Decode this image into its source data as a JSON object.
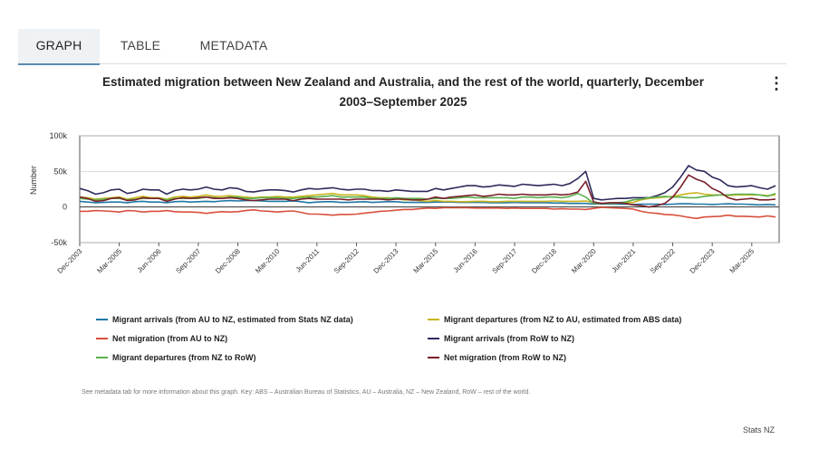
{
  "tabs": [
    {
      "label": "GRAPH",
      "active": true
    },
    {
      "label": "TABLE",
      "active": false
    },
    {
      "label": "METADATA",
      "active": false
    }
  ],
  "menu_icon": "more-vertical-icon",
  "footnote": "See metadata tab for more information about this graph. Key: ABS – Australian Bureau of Statistics, AU – Australia, NZ – New Zealand, RoW – rest of the world.",
  "source": "Stats NZ",
  "chart_data": {
    "type": "line",
    "title": "Estimated migration between New Zealand and Australia, and the rest of the world, quarterly, December 2003–September 2025",
    "title_lines": [
      "Estimated migration between New Zealand and Australia, and the rest of the world, quarterly, December",
      "2003–September 2025"
    ],
    "ylabel": "Number",
    "xlabel": "",
    "ylim": [
      -50000,
      100000
    ],
    "yticks": [
      {
        "value": 100000,
        "label": "100k"
      },
      {
        "value": 50000,
        "label": "50k"
      },
      {
        "value": 0,
        "label": "0"
      },
      {
        "value": -50000,
        "label": "-50k"
      }
    ],
    "xticks": [
      {
        "index": 0,
        "label": "Dec-2003"
      },
      {
        "index": 5,
        "label": "Mar-2005"
      },
      {
        "index": 10,
        "label": "Jun-2006"
      },
      {
        "index": 15,
        "label": "Sep-2007"
      },
      {
        "index": 20,
        "label": "Dec-2008"
      },
      {
        "index": 25,
        "label": "Mar-2010"
      },
      {
        "index": 30,
        "label": "Jun-2011"
      },
      {
        "index": 35,
        "label": "Sep-2012"
      },
      {
        "index": 40,
        "label": "Dec-2013"
      },
      {
        "index": 45,
        "label": "Mar-2015"
      },
      {
        "index": 50,
        "label": "Jun-2016"
      },
      {
        "index": 55,
        "label": "Sep-2017"
      },
      {
        "index": 60,
        "label": "Dec-2018"
      },
      {
        "index": 65,
        "label": "Mar-2020"
      },
      {
        "index": 70,
        "label": "Jun-2021"
      },
      {
        "index": 75,
        "label": "Sep-2022"
      },
      {
        "index": 80,
        "label": "Dec-2023"
      },
      {
        "index": 85,
        "label": "Mar-2025"
      }
    ],
    "grid": true,
    "legend_position": "bottom",
    "series": [
      {
        "name": "Migrant arrivals (from AU to NZ, estimated from Stats NZ data)",
        "color": "#1f77a4",
        "values": [
          8000,
          7000,
          6000,
          6500,
          7000,
          7000,
          6000,
          7500,
          8000,
          7000,
          7000,
          6000,
          7500,
          8000,
          7000,
          7500,
          8000,
          7500,
          8500,
          9000,
          8500,
          9000,
          9000,
          8500,
          8000,
          8000,
          8000,
          8500,
          7500,
          6000,
          7000,
          7500,
          7500,
          6500,
          6500,
          7000,
          7500,
          6500,
          7000,
          7500,
          7500,
          6500,
          6500,
          6500,
          6500,
          7000,
          7000,
          7000,
          6500,
          6500,
          6500,
          6500,
          6000,
          6000,
          6000,
          6500,
          6000,
          6000,
          6000,
          6000,
          5500,
          5500,
          5000,
          5000,
          5000,
          4000,
          4500,
          4000,
          4000,
          4000,
          3500,
          4000,
          4000,
          4000,
          3500,
          4000,
          4500,
          4500,
          4000,
          4000,
          3500,
          4000,
          4500,
          4000,
          4000,
          3500,
          3000,
          3500,
          3000
        ]
      },
      {
        "name": "Migrant departures (from NZ to AU, estimated from ABS data)",
        "color": "#c9b41e",
        "values": [
          14000,
          13000,
          11000,
          12000,
          13000,
          14000,
          11000,
          13000,
          15000,
          13000,
          13000,
          11000,
          14000,
          15000,
          14000,
          15000,
          17000,
          15000,
          15000,
          16000,
          15000,
          14000,
          13000,
          14000,
          14000,
          15000,
          14000,
          14000,
          15000,
          16000,
          17000,
          18000,
          19000,
          17000,
          17000,
          17000,
          16000,
          14000,
          13000,
          13000,
          12000,
          10000,
          10000,
          9000,
          8000,
          9000,
          8000,
          8000,
          7500,
          7500,
          8000,
          8000,
          7500,
          7500,
          8000,
          8000,
          8000,
          8000,
          8000,
          8000,
          8500,
          8000,
          8000,
          8000,
          8500,
          6000,
          5000,
          5000,
          5500,
          6000,
          6500,
          10000,
          12000,
          13000,
          14000,
          15000,
          17000,
          19000,
          20000,
          18000,
          17000,
          17000,
          16000,
          17000,
          17000,
          17000,
          17000,
          16000,
          17000
        ]
      },
      {
        "name": "Net migration (from AU to NZ)",
        "color": "#d94f3d",
        "values": [
          -6000,
          -6000,
          -5000,
          -5500,
          -6000,
          -7000,
          -5000,
          -5500,
          -7000,
          -6000,
          -6000,
          -5000,
          -6500,
          -7000,
          -7000,
          -7500,
          -9000,
          -7500,
          -6500,
          -7000,
          -6500,
          -5000,
          -4000,
          -5500,
          -6000,
          -7000,
          -6000,
          -5500,
          -7500,
          -10000,
          -10000,
          -10500,
          -11500,
          -10500,
          -10500,
          -10000,
          -8500,
          -7500,
          -6000,
          -5500,
          -4500,
          -3500,
          -3500,
          -2500,
          -1500,
          -2000,
          -1000,
          -1000,
          -1000,
          -1000,
          -1500,
          -1500,
          -1500,
          -1500,
          -2000,
          -1500,
          -2000,
          -2000,
          -2000,
          -2000,
          -3000,
          -2500,
          -3000,
          -3000,
          -3500,
          -2000,
          -500,
          -1000,
          -1500,
          -2000,
          -3000,
          -6000,
          -8000,
          -9000,
          -10500,
          -11000,
          -12500,
          -14500,
          -16000,
          -14000,
          -13500,
          -13000,
          -11500,
          -13000,
          -13000,
          -13500,
          -14000,
          -12500,
          -14000
        ]
      },
      {
        "name": "Migrant arrivals (from RoW to NZ)",
        "color": "#2e2a5c",
        "values": [
          26000,
          23000,
          18000,
          20000,
          24000,
          25000,
          19000,
          21000,
          25000,
          24000,
          24000,
          18000,
          23000,
          25000,
          24000,
          25000,
          28000,
          25000,
          24000,
          27000,
          26000,
          22000,
          21000,
          23000,
          24000,
          24000,
          23000,
          21000,
          24000,
          26000,
          25000,
          26000,
          27000,
          25000,
          24000,
          25000,
          25000,
          23000,
          23000,
          22000,
          24000,
          23000,
          22000,
          22000,
          22000,
          26000,
          24000,
          26000,
          28000,
          30000,
          30000,
          28000,
          29000,
          31000,
          30000,
          29000,
          32000,
          31000,
          30000,
          31000,
          32000,
          30000,
          33000,
          40000,
          50000,
          12000,
          10000,
          11000,
          12000,
          12000,
          13000,
          13000,
          13000,
          16000,
          20000,
          28000,
          42000,
          58000,
          52000,
          50000,
          42000,
          38000,
          30000,
          28000,
          29000,
          30000,
          27000,
          25000,
          30000
        ]
      },
      {
        "name": "Migrant departures (from NZ to RoW)",
        "color": "#5db04c",
        "values": [
          12000,
          11000,
          10000,
          11000,
          12000,
          12000,
          10000,
          11000,
          12000,
          12000,
          12000,
          10000,
          12000,
          12000,
          12000,
          12000,
          14000,
          13000,
          12000,
          14000,
          14000,
          12000,
          12000,
          13000,
          13000,
          13000,
          12000,
          12000,
          13000,
          14000,
          14000,
          15000,
          16000,
          14000,
          14000,
          14000,
          14000,
          12000,
          12000,
          12000,
          13000,
          12000,
          12000,
          12000,
          11000,
          12000,
          12000,
          12000,
          13000,
          14000,
          13000,
          13000,
          13000,
          13000,
          13000,
          12000,
          14000,
          14000,
          13000,
          14000,
          14000,
          13000,
          15000,
          19000,
          14000,
          5000,
          5000,
          5000,
          6000,
          7000,
          10000,
          11000,
          13000,
          14000,
          15000,
          14000,
          14000,
          13000,
          13000,
          15000,
          16000,
          17000,
          17000,
          18000,
          18000,
          18000,
          17000,
          15000,
          19000
        ]
      },
      {
        "name": "Net migration (from RoW to NZ)",
        "color": "#7a1f2b",
        "values": [
          14000,
          12000,
          8000,
          9000,
          12000,
          13000,
          9000,
          10000,
          13000,
          12000,
          12000,
          8000,
          11000,
          13000,
          12000,
          13000,
          14000,
          12000,
          12000,
          13000,
          12000,
          10000,
          9000,
          10000,
          11000,
          11000,
          11000,
          9000,
          11000,
          12000,
          11000,
          11000,
          11000,
          11000,
          10000,
          11000,
          11000,
          11000,
          11000,
          10000,
          11000,
          11000,
          10000,
          10000,
          11000,
          14000,
          12000,
          14000,
          15000,
          16000,
          17000,
          15000,
          16000,
          18000,
          17000,
          17000,
          18000,
          17000,
          17000,
          17000,
          18000,
          17000,
          18000,
          21000,
          36000,
          7000,
          5000,
          6000,
          6000,
          5000,
          3000,
          2000,
          0,
          2000,
          5000,
          14000,
          28000,
          45000,
          39000,
          35000,
          26000,
          21000,
          13000,
          10000,
          11000,
          12000,
          10000,
          10000,
          11000
        ]
      }
    ]
  }
}
